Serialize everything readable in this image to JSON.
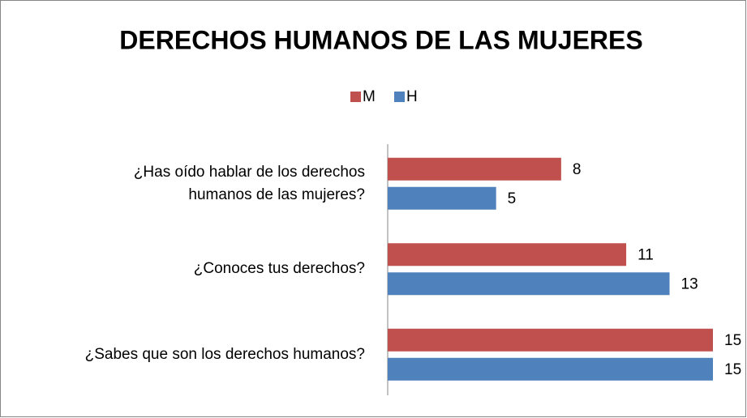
{
  "chart_data": {
    "type": "barh",
    "title": "DERECHOS HUMANOS DE LAS MUJERES",
    "categories": [
      "¿Has oído hablar de los derechos\nhumanos de las mujeres?",
      "¿Conoces tus derechos?",
      "¿Sabes que son los derechos humanos?"
    ],
    "series": [
      {
        "name": "M",
        "color": "#c0504d",
        "values": [
          8,
          11,
          15
        ]
      },
      {
        "name": "H",
        "color": "#4f81bd",
        "values": [
          5,
          13,
          15
        ]
      }
    ],
    "xlim": [
      0,
      15
    ],
    "legend": "top"
  }
}
